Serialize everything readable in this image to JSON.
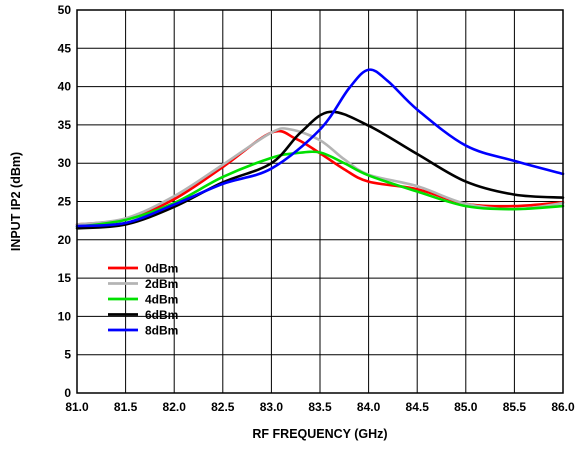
{
  "chart_data": {
    "type": "line",
    "title": "",
    "xlabel": "RF FREQUENCY (GHz)",
    "ylabel": "INPUT IP2 (dBm)",
    "xlim": [
      81.0,
      86.0
    ],
    "ylim": [
      0,
      50
    ],
    "xticks": [
      "81.0",
      "81.5",
      "82.0",
      "82.5",
      "83.0",
      "83.5",
      "84.0",
      "84.5",
      "85.0",
      "85.5",
      "86.0"
    ],
    "yticks": [
      "0",
      "5",
      "10",
      "15",
      "20",
      "25",
      "30",
      "35",
      "40",
      "45",
      "50"
    ],
    "grid": true,
    "legend_position": "bottom-left",
    "series": [
      {
        "name": "0dBm",
        "color": "#ff0000",
        "x": [
          81.0,
          81.5,
          82.0,
          82.5,
          83.0,
          83.25,
          83.5,
          83.75,
          84.0,
          84.5,
          85.0,
          85.5,
          86.0
        ],
        "y": [
          22.0,
          22.7,
          25.3,
          29.5,
          34.0,
          33.2,
          31.3,
          29.2,
          27.6,
          26.6,
          24.7,
          24.4,
          24.9
        ]
      },
      {
        "name": "2dBm",
        "color": "#b4b4b4",
        "x": [
          81.0,
          81.5,
          82.0,
          82.5,
          83.0,
          83.2,
          83.5,
          83.75,
          84.0,
          84.5,
          85.0,
          85.5,
          86.0
        ],
        "y": [
          22.0,
          22.8,
          25.7,
          29.8,
          34.0,
          34.4,
          33.0,
          30.5,
          28.5,
          27.0,
          24.7,
          24.0,
          24.8
        ]
      },
      {
        "name": "4dBm",
        "color": "#00e000",
        "x": [
          81.0,
          81.5,
          82.0,
          82.5,
          83.0,
          83.25,
          83.5,
          83.75,
          84.0,
          84.5,
          85.0,
          85.5,
          86.0
        ],
        "y": [
          21.7,
          22.6,
          24.8,
          28.2,
          30.7,
          31.3,
          31.4,
          30.0,
          28.4,
          26.3,
          24.4,
          24.0,
          24.4
        ]
      },
      {
        "name": "6dBm",
        "color": "#000000",
        "x": [
          81.0,
          81.5,
          82.0,
          82.5,
          83.0,
          83.3,
          83.6,
          84.0,
          84.5,
          85.0,
          85.5,
          86.0
        ],
        "y": [
          21.5,
          22.0,
          24.3,
          27.5,
          30.0,
          34.0,
          36.7,
          34.9,
          31.2,
          27.6,
          25.9,
          25.5
        ]
      },
      {
        "name": "8dBm",
        "color": "#0000ff",
        "x": [
          81.0,
          81.5,
          82.0,
          82.5,
          83.0,
          83.5,
          83.8,
          84.0,
          84.2,
          84.5,
          85.0,
          85.5,
          86.0
        ],
        "y": [
          21.8,
          22.2,
          24.6,
          27.3,
          29.3,
          34.4,
          39.8,
          42.2,
          40.7,
          37.0,
          32.3,
          30.3,
          28.6
        ]
      }
    ]
  }
}
